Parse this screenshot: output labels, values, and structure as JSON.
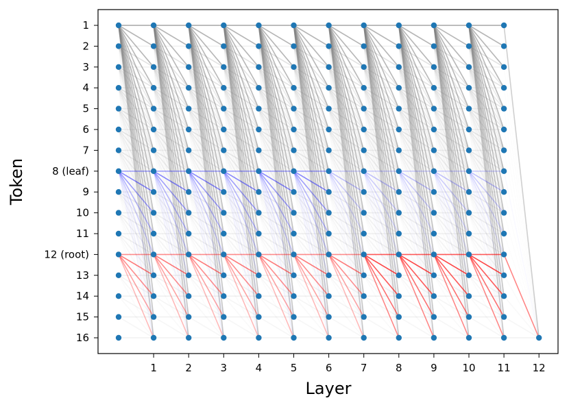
{
  "chart_data": {
    "type": "scatter",
    "title": "",
    "xlabel": "Layer",
    "ylabel": "Token",
    "x_ticks": [
      "1",
      "2",
      "3",
      "4",
      "5",
      "6",
      "7",
      "8",
      "9",
      "10",
      "11",
      "12"
    ],
    "y_ticks": [
      "1",
      "2",
      "3",
      "4",
      "5",
      "6",
      "7",
      "8 (leaf)",
      "9",
      "10",
      "11",
      "12 (root)",
      "13",
      "14",
      "15",
      "16"
    ],
    "xlim": [
      -1,
      12.6
    ],
    "grid": false,
    "layers": [
      0,
      1,
      2,
      3,
      4,
      5,
      6,
      7,
      8,
      9,
      10,
      11,
      12
    ],
    "tokens": [
      1,
      2,
      3,
      4,
      5,
      6,
      7,
      8,
      9,
      10,
      11,
      12,
      13,
      14,
      15,
      16
    ],
    "points": {
      "layers_0_to_11": "all tokens 1-16",
      "layer_12": [
        16
      ]
    },
    "highlight": {
      "leaf_token": 8,
      "root_token": 12,
      "leaf_color": "#0000ff",
      "root_color": "#ff0000",
      "other_color": "#808080"
    },
    "colors": {
      "point": "#1f77b4",
      "gray_edge": "#808080",
      "blue_edge": "#0000ff",
      "red_edge": "#ff0000"
    }
  }
}
